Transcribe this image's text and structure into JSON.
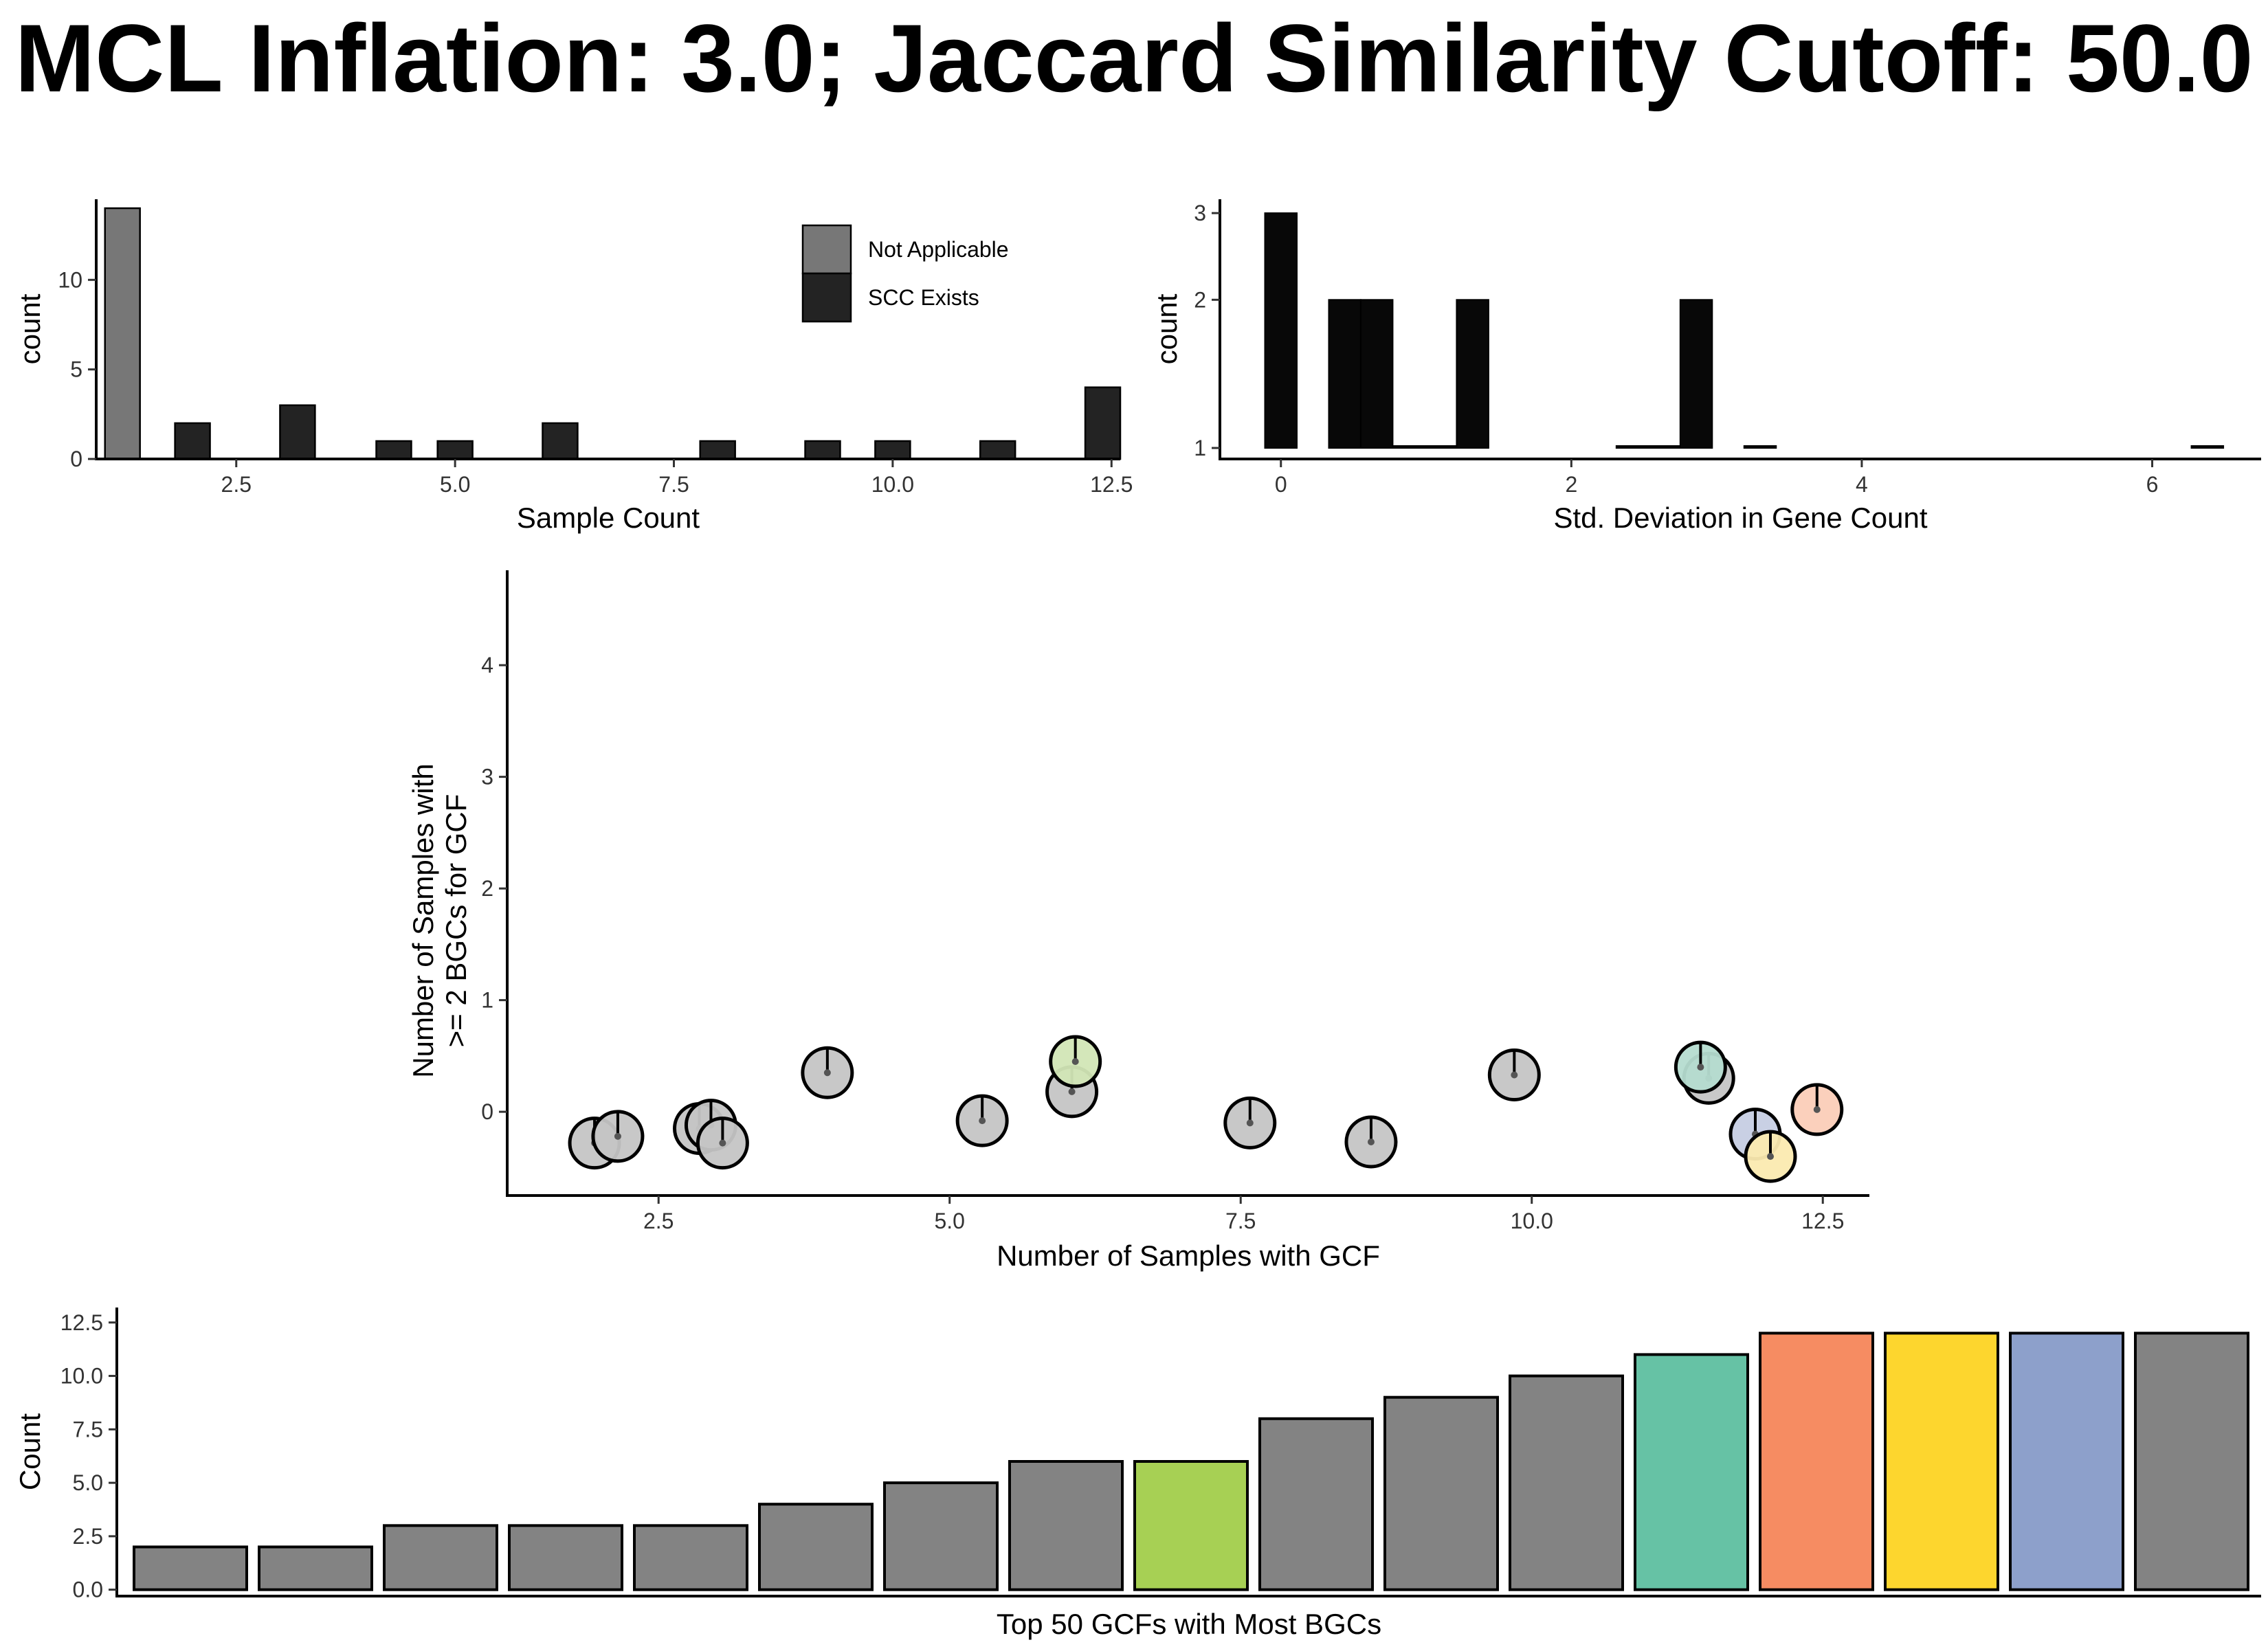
{
  "title": "MCL Inflation: 3.0; Jaccard Similarity Cutoff: 50.0",
  "chart_data": [
    {
      "id": "sample-count-hist",
      "type": "bar",
      "subtype": "histogram",
      "xlabel": "Sample Count",
      "ylabel": "count",
      "xlim": [
        0.9,
        12.6
      ],
      "ylim": [
        0,
        14.5
      ],
      "xticks": [
        "2.5",
        "5.0",
        "7.5",
        "10.0",
        "12.5"
      ],
      "yticks": [
        "0",
        "5",
        "10"
      ],
      "bin_width": 0.4,
      "legend": {
        "placement": "top-right",
        "entries": [
          {
            "name": "Not Applicable",
            "color": "#777777"
          },
          {
            "name": "SCC Exists",
            "color": "#232323"
          }
        ]
      },
      "series": [
        {
          "name": "Not Applicable",
          "color": "#777777",
          "bins": [
            {
              "x": 1.2,
              "count": 14
            }
          ]
        },
        {
          "name": "SCC Exists",
          "color": "#232323",
          "bins": [
            {
              "x": 2.0,
              "count": 2
            },
            {
              "x": 3.2,
              "count": 3
            },
            {
              "x": 4.3,
              "count": 1
            },
            {
              "x": 5.0,
              "count": 1
            },
            {
              "x": 6.2,
              "count": 2
            },
            {
              "x": 8.0,
              "count": 1
            },
            {
              "x": 9.2,
              "count": 1
            },
            {
              "x": 10.0,
              "count": 1
            },
            {
              "x": 11.2,
              "count": 1
            },
            {
              "x": 12.4,
              "count": 4
            }
          ]
        }
      ]
    },
    {
      "id": "std-dev-hist",
      "type": "bar",
      "subtype": "histogram",
      "scale": "log",
      "xlabel": "Std. Deviation in Gene Count",
      "ylabel": "count",
      "xlim": [
        -0.42,
        6.75
      ],
      "ylim": [
        1,
        3.05
      ],
      "xticks": [
        "0",
        "2",
        "4",
        "6"
      ],
      "yticks": [
        "1",
        "2",
        "3"
      ],
      "bin_width": 0.22,
      "color": "#080808",
      "bins": [
        {
          "x": 0.0,
          "count": 3
        },
        {
          "x": 0.44,
          "count": 2
        },
        {
          "x": 0.66,
          "count": 2
        },
        {
          "x": 0.88,
          "count": 1
        },
        {
          "x": 1.1,
          "count": 1
        },
        {
          "x": 1.32,
          "count": 2
        },
        {
          "x": 2.42,
          "count": 1
        },
        {
          "x": 2.64,
          "count": 1
        },
        {
          "x": 2.86,
          "count": 2
        },
        {
          "x": 3.3,
          "count": 1
        },
        {
          "x": 6.38,
          "count": 1
        }
      ]
    },
    {
      "id": "gcf-scatter",
      "type": "scatter",
      "xlabel": "Number of Samples with GCF",
      "ylabel_lines": [
        "Number of Samples with",
        ">= 2 BGCs for GCF"
      ],
      "xlim": [
        1.2,
        12.9
      ],
      "ylim": [
        -0.75,
        4.85
      ],
      "xticks": [
        "2.5",
        "5.0",
        "7.5",
        "10.0",
        "12.5"
      ],
      "yticks": [
        "0",
        "1",
        "2",
        "3",
        "4"
      ],
      "points": [
        {
          "x": 2,
          "y": 0,
          "jx": 1.95,
          "jy": -0.28,
          "color": "#c5c5c5"
        },
        {
          "x": 2,
          "y": 0,
          "jx": 2.15,
          "jy": -0.22,
          "color": "#c5c5c5"
        },
        {
          "x": 3,
          "y": 0,
          "jx": 2.85,
          "jy": -0.15,
          "color": "#c5c5c5"
        },
        {
          "x": 3,
          "y": 0,
          "jx": 2.95,
          "jy": -0.12,
          "color": "#c5c5c5"
        },
        {
          "x": 3,
          "y": 0,
          "jx": 3.05,
          "jy": -0.28,
          "color": "#c5c5c5"
        },
        {
          "x": 4,
          "y": 0,
          "jx": 3.95,
          "jy": 0.35,
          "color": "#c5c5c5"
        },
        {
          "x": 5,
          "y": 0,
          "jx": 5.28,
          "jy": -0.08,
          "color": "#c5c5c5"
        },
        {
          "x": 6,
          "y": 0,
          "jx": 6.05,
          "jy": 0.18,
          "color": "#c5c5c5"
        },
        {
          "x": 6,
          "y": 0,
          "jx": 6.08,
          "jy": 0.45,
          "color": "#d2e6b6"
        },
        {
          "x": 8,
          "y": 0,
          "jx": 7.58,
          "jy": -0.1,
          "color": "#c5c5c5"
        },
        {
          "x": 9,
          "y": 0,
          "jx": 8.62,
          "jy": -0.27,
          "color": "#c5c5c5"
        },
        {
          "x": 10,
          "y": 0,
          "jx": 9.85,
          "jy": 0.33,
          "color": "#c5c5c5"
        },
        {
          "x": 11,
          "y": 0,
          "jx": 11.52,
          "jy": 0.3,
          "color": "#c5c5c5"
        },
        {
          "x": 11,
          "y": 0,
          "jx": 11.45,
          "jy": 0.4,
          "color": "#b5dcd0"
        },
        {
          "x": 12,
          "y": 0,
          "jx": 11.92,
          "jy": -0.2,
          "color": "#c6cee3"
        },
        {
          "x": 12,
          "y": 0,
          "jx": 12.05,
          "jy": -0.4,
          "color": "#fbeab0"
        },
        {
          "x": 12,
          "y": 0,
          "jx": 12.45,
          "jy": 0.02,
          "color": "#fbcdb8"
        }
      ]
    },
    {
      "id": "top-gcf-bars",
      "type": "bar",
      "xlabel": "Top 50 GCFs with Most BGCs",
      "ylabel": "Count",
      "ylim": [
        -0.3,
        13.2
      ],
      "yticks": [
        "0.0",
        "2.5",
        "5.0",
        "7.5",
        "10.0",
        "12.5"
      ],
      "values": [
        2,
        2,
        3,
        3,
        3,
        4,
        5,
        6,
        6,
        8,
        9,
        10,
        11,
        12,
        12,
        12,
        12
      ],
      "colors": [
        "#838383",
        "#838383",
        "#838383",
        "#838383",
        "#838383",
        "#838383",
        "#838383",
        "#838383",
        "#a7d054",
        "#838383",
        "#838383",
        "#838383",
        "#66c2a5",
        "#f68c62",
        "#fdd62e",
        "#8da0cb",
        "#838383"
      ]
    }
  ]
}
